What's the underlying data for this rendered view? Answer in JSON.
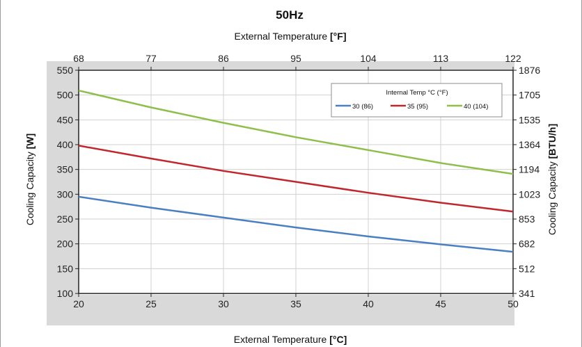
{
  "chart_data": {
    "type": "line",
    "title": "50Hz",
    "xlabel_top_prefix": "External Temperature ",
    "xlabel_top_unit": "[°F]",
    "xlabel_bottom_prefix": "External Temperature ",
    "xlabel_bottom_unit": "[°C]",
    "ylabel_left_prefix": "Cooling Capacity ",
    "ylabel_left_unit": "[W]",
    "ylabel_right_prefix": "Cooling Capacity ",
    "ylabel_right_unit": "[BTU/h]",
    "xlim": [
      20,
      50
    ],
    "ylim": [
      100,
      550
    ],
    "x_ticks": [
      20,
      25,
      30,
      35,
      40,
      45,
      50
    ],
    "y_ticks": [
      100,
      150,
      200,
      250,
      300,
      350,
      400,
      450,
      500,
      550
    ],
    "x_top_ticks": [
      "68",
      "77",
      "86",
      "95",
      "104",
      "113",
      "122"
    ],
    "y_right_ticks": [
      "341",
      "512",
      "682",
      "853",
      "1023",
      "1194",
      "1364",
      "1535",
      "1705",
      "1876"
    ],
    "grid": true,
    "legend": {
      "title": "Internal Temp °C (°F)",
      "placement": "top-right"
    },
    "series": [
      {
        "name": "30 (86)",
        "color": "#4a7fc1",
        "x": [
          20,
          25,
          30,
          35,
          40,
          45,
          50
        ],
        "y": [
          295,
          273,
          253,
          233,
          215,
          199,
          184
        ]
      },
      {
        "name": "35 (95)",
        "color": "#c0262c",
        "x": [
          20,
          25,
          30,
          35,
          40,
          45,
          50
        ],
        "y": [
          398,
          372,
          347,
          325,
          303,
          283,
          265
        ]
      },
      {
        "name": "40 (104)",
        "color": "#8dbf4a",
        "x": [
          20,
          25,
          30,
          35,
          40,
          45,
          50
        ],
        "y": [
          509,
          475,
          444,
          415,
          389,
          363,
          341
        ]
      }
    ]
  }
}
